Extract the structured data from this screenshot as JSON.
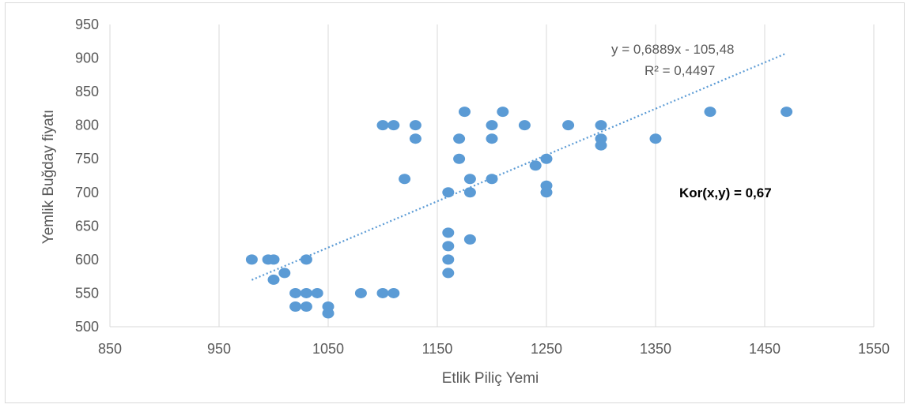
{
  "chart_data": {
    "type": "scatter",
    "title": "",
    "xlabel": "Etlik Piliç Yemi",
    "ylabel": "Yemlik Buğday fiyatı",
    "xlim": [
      850,
      1550
    ],
    "ylim": [
      500,
      950
    ],
    "xticks": [
      850,
      950,
      1050,
      1150,
      1250,
      1350,
      1450,
      1550
    ],
    "yticks": [
      500,
      550,
      600,
      650,
      700,
      750,
      800,
      850,
      900,
      950
    ],
    "x_tick_labels": [
      "850",
      "950",
      "1050",
      "1150",
      "1250",
      "1350",
      "1450",
      "1550"
    ],
    "y_tick_labels": [
      "500",
      "550",
      "600",
      "650",
      "700",
      "750",
      "800",
      "850",
      "900",
      "950"
    ],
    "grid": "vertical",
    "marker_color": "#5b9bd5",
    "trendline_color": "#5b9bd5",
    "series": [
      {
        "points": [
          [
            980,
            600
          ],
          [
            995,
            600
          ],
          [
            1000,
            600
          ],
          [
            1000,
            570
          ],
          [
            1010,
            580
          ],
          [
            1020,
            550
          ],
          [
            1020,
            530
          ],
          [
            1030,
            600
          ],
          [
            1030,
            550
          ],
          [
            1030,
            530
          ],
          [
            1040,
            550
          ],
          [
            1050,
            530
          ],
          [
            1050,
            520
          ],
          [
            1080,
            550
          ],
          [
            1100,
            550
          ],
          [
            1110,
            550
          ],
          [
            1100,
            800
          ],
          [
            1110,
            800
          ],
          [
            1120,
            720
          ],
          [
            1130,
            800
          ],
          [
            1130,
            780
          ],
          [
            1160,
            700
          ],
          [
            1160,
            640
          ],
          [
            1160,
            620
          ],
          [
            1160,
            600
          ],
          [
            1160,
            580
          ],
          [
            1170,
            780
          ],
          [
            1170,
            750
          ],
          [
            1175,
            820
          ],
          [
            1180,
            720
          ],
          [
            1180,
            700
          ],
          [
            1180,
            630
          ],
          [
            1200,
            800
          ],
          [
            1200,
            780
          ],
          [
            1200,
            720
          ],
          [
            1210,
            820
          ],
          [
            1230,
            800
          ],
          [
            1240,
            740
          ],
          [
            1250,
            750
          ],
          [
            1250,
            710
          ],
          [
            1250,
            700
          ],
          [
            1270,
            800
          ],
          [
            1300,
            800
          ],
          [
            1300,
            780
          ],
          [
            1300,
            770
          ],
          [
            1350,
            780
          ],
          [
            1400,
            820
          ],
          [
            1470,
            820
          ]
        ]
      }
    ],
    "trendline": {
      "type": "linear",
      "slope": 0.6889,
      "intercept": -105.48,
      "x_range": [
        980,
        1470
      ],
      "equation_label": "y = 0,6889x - 105,48",
      "r2_label": "R² = 0,4497"
    },
    "annotations": {
      "correlation_label": "Kor(x,y) = 0,67"
    }
  }
}
